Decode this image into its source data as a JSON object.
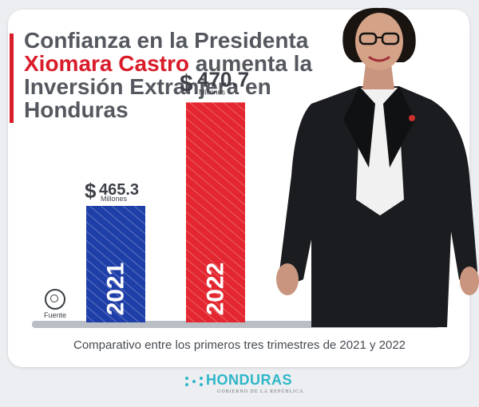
{
  "headline": {
    "line1": "Confianza en la Presidenta",
    "line2_name": "Xiomara Castro",
    "line2_rest": " aumenta la",
    "line3": "Inversión Extranjera en",
    "line4": "Honduras"
  },
  "chart_data": {
    "type": "bar",
    "categories": [
      "2021",
      "2022"
    ],
    "values": [
      465.3,
      470.7
    ],
    "value_prefix": "$",
    "value_unit": "Millones",
    "bar_colors": [
      "#1f3fa8",
      "#e3262f"
    ],
    "title": "",
    "xlabel": "",
    "ylabel": ""
  },
  "source": {
    "label": "Fuente"
  },
  "footnote": "Comparativo entre los primeros tres trimestres de 2021 y 2022",
  "brand": {
    "name": "HONDURAS",
    "subtitle": "GOBIERNO DE LA REPÚBLICA",
    "accent": "#d91c2a",
    "logo_color": "#2fb6c8"
  }
}
